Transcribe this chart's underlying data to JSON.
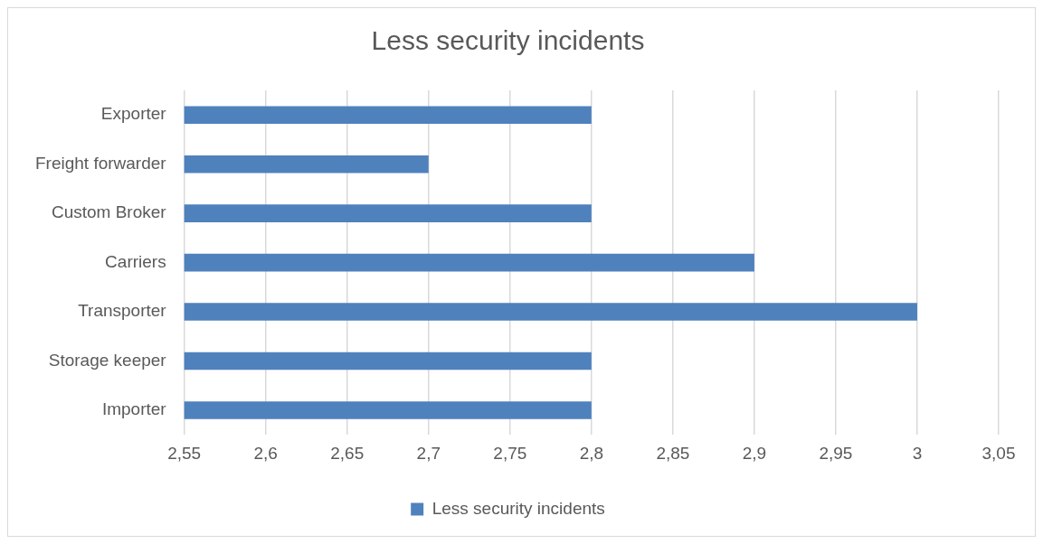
{
  "chart_data": {
    "type": "bar",
    "orientation": "horizontal",
    "title": "Less security incidents",
    "categories": [
      "Exporter",
      "Freight forwarder",
      "Custom Broker",
      "Carriers",
      "Transporter",
      "Storage keeper",
      "Importer"
    ],
    "series": [
      {
        "name": "Less security incidents",
        "color": "#4f81bd",
        "values": [
          2.8,
          2.7,
          2.8,
          2.9,
          3.0,
          2.8,
          2.8
        ]
      }
    ],
    "xlim": [
      2.55,
      3.05
    ],
    "xticks": [
      {
        "value": 2.55,
        "label": "2,55"
      },
      {
        "value": 2.6,
        "label": "2,6"
      },
      {
        "value": 2.65,
        "label": "2,65"
      },
      {
        "value": 2.7,
        "label": "2,7"
      },
      {
        "value": 2.75,
        "label": "2,75"
      },
      {
        "value": 2.8,
        "label": "2,8"
      },
      {
        "value": 2.85,
        "label": "2,85"
      },
      {
        "value": 2.9,
        "label": "2,9"
      },
      {
        "value": 2.95,
        "label": "2,95"
      },
      {
        "value": 3,
        "label": "3"
      },
      {
        "value": 3.05,
        "label": "3,05"
      }
    ],
    "grid": "x",
    "legend": "bottom"
  }
}
